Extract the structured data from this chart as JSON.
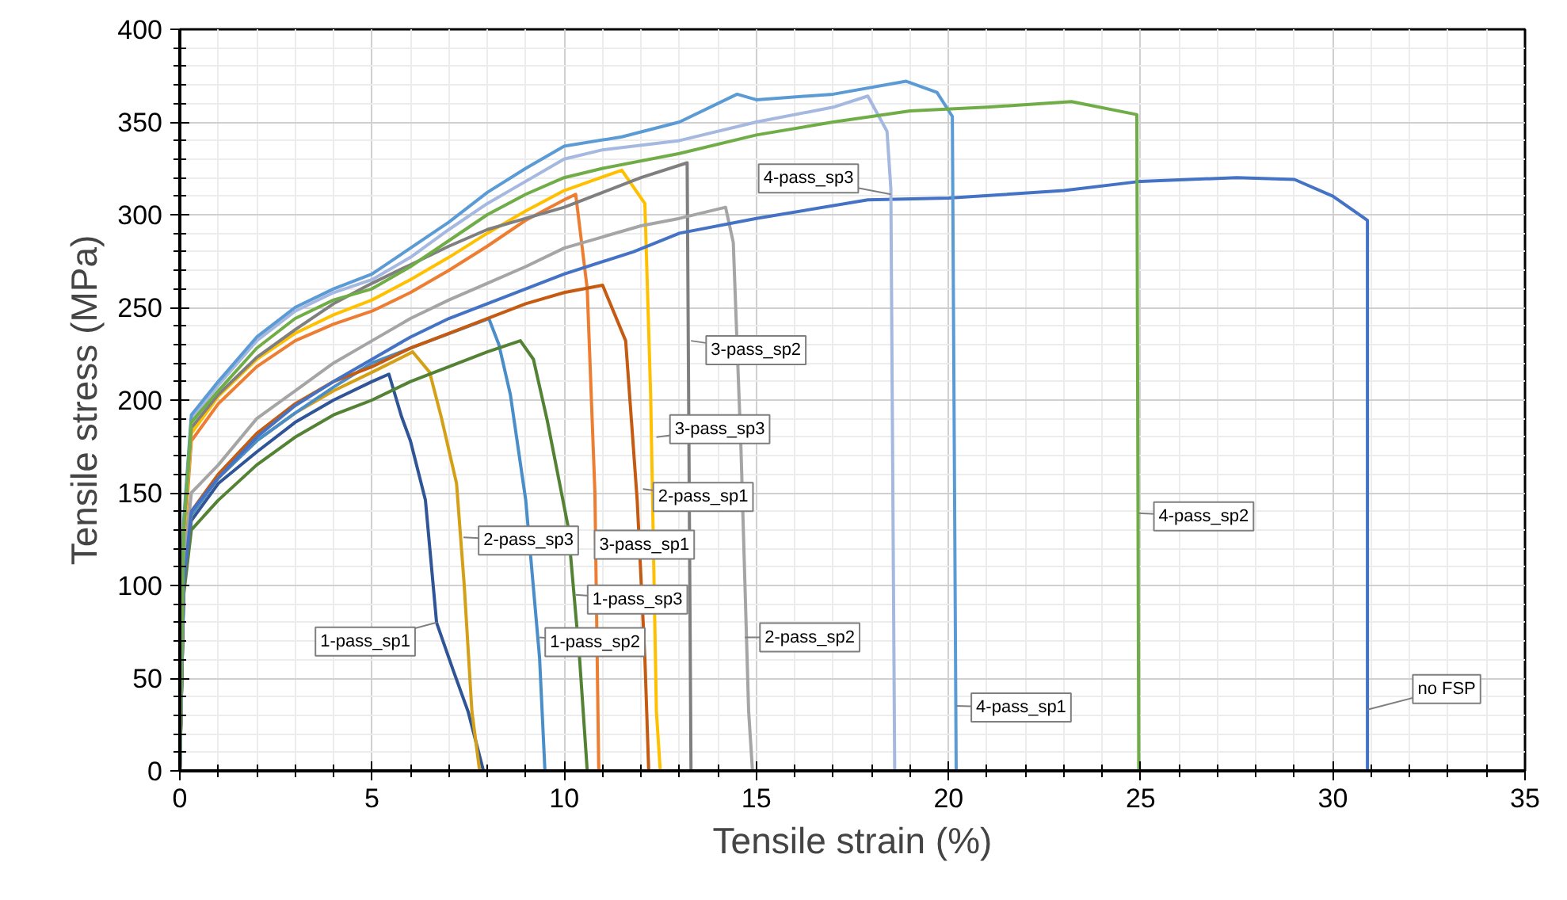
{
  "chart_data": {
    "type": "line",
    "xlabel": "Tensile strain (%)",
    "ylabel": "Tensile stress (MPa)",
    "xlim": [
      0,
      35
    ],
    "ylim": [
      0,
      400
    ],
    "xticks": [
      0,
      5,
      10,
      15,
      20,
      25,
      30,
      35
    ],
    "yticks": [
      0,
      50,
      100,
      150,
      200,
      250,
      300,
      350,
      400
    ],
    "grid": true,
    "marker": "none",
    "line_style": "solid",
    "series": [
      {
        "color": "#2f5597",
        "x": [
          0,
          0.1,
          0.3,
          1,
          2,
          3,
          4,
          5,
          5.44,
          5.77,
          6.0,
          6.39,
          6.68,
          7.1,
          7.5,
          7.9
        ],
        "values": [
          0,
          100,
          135,
          155,
          172,
          188,
          200,
          210,
          214,
          191,
          178,
          146,
          80,
          55,
          32,
          0
        ]
      },
      {
        "color": "#d4a017",
        "x": [
          0,
          0.1,
          0.3,
          1,
          2,
          3,
          4,
          5,
          6.06,
          6.5,
          6.8,
          7.2,
          7.4,
          7.6,
          7.8
        ],
        "values": [
          0,
          100,
          138,
          158,
          178,
          193,
          205,
          215,
          226,
          215,
          191,
          155,
          100,
          32,
          0
        ]
      },
      {
        "color": "#4a8ec9",
        "x": [
          0,
          0.1,
          0.3,
          1,
          2,
          3,
          4,
          5,
          6,
          8.04,
          8.3,
          8.6,
          9.0,
          9.36,
          9.5
        ],
        "values": [
          0,
          100,
          138,
          158,
          178,
          193,
          207,
          220,
          228,
          244,
          230,
          203,
          146,
          61,
          0
        ]
      },
      {
        "color": "#548235",
        "x": [
          0,
          0.1,
          0.3,
          1,
          2,
          3,
          4,
          5,
          6,
          7,
          8,
          8.86,
          9.2,
          9.56,
          10.1,
          10.4,
          10.6
        ],
        "values": [
          0,
          95,
          130,
          146,
          165,
          180,
          192,
          200,
          210,
          218,
          226,
          232,
          222,
          189,
          132,
          61,
          0
        ]
      },
      {
        "color": "#ed7d31",
        "x": [
          0,
          0.1,
          0.3,
          1,
          2,
          3,
          4,
          5,
          6,
          7,
          8,
          9,
          10,
          10.3,
          10.6,
          10.8,
          10.9
        ],
        "values": [
          0,
          120,
          178,
          198,
          218,
          232,
          241,
          248,
          258,
          270,
          283,
          297,
          308,
          311,
          260,
          150,
          0
        ]
      },
      {
        "color": "#c55a11",
        "x": [
          0,
          0.1,
          0.3,
          1,
          2,
          3,
          4,
          5,
          6,
          7,
          8,
          9,
          10,
          11.0,
          11.6,
          11.9,
          12.1,
          12.2
        ],
        "values": [
          0,
          100,
          140,
          160,
          182,
          198,
          210,
          218,
          228,
          236,
          244,
          252,
          258,
          262,
          232,
          146,
          61,
          0
        ]
      },
      {
        "color": "#ffc000",
        "x": [
          0,
          0.1,
          0.3,
          1,
          2,
          3,
          4,
          5,
          6,
          7,
          8,
          9,
          10,
          11.5,
          12.1,
          12.25,
          12.4,
          12.5
        ],
        "values": [
          0,
          125,
          182,
          202,
          222,
          236,
          246,
          254,
          265,
          277,
          290,
          302,
          313,
          324,
          306,
          203,
          32,
          0
        ]
      },
      {
        "color": "#7f7f7f",
        "x": [
          0,
          0.1,
          0.3,
          1,
          2,
          3,
          4,
          5,
          6,
          7,
          8,
          9,
          10,
          11,
          12,
          13.2,
          13.3
        ],
        "values": [
          0,
          130,
          185,
          203,
          223,
          238,
          252,
          263,
          273,
          283,
          292,
          298,
          304,
          312,
          320,
          328,
          0
        ]
      },
      {
        "color": "#a5a5a5",
        "x": [
          0,
          0.1,
          0.3,
          1,
          2,
          3,
          4,
          5,
          6,
          7,
          8,
          9,
          10,
          11,
          12,
          13,
          14.2,
          14.4,
          14.6,
          14.8,
          14.9
        ],
        "values": [
          0,
          110,
          150,
          165,
          190,
          205,
          220,
          232,
          244,
          254,
          263,
          272,
          282,
          288,
          294,
          298,
          304,
          285,
          174,
          32,
          0
        ]
      },
      {
        "color": "#4472c4",
        "x": [
          0,
          0.1,
          0.3,
          1,
          2,
          3,
          4,
          5,
          6,
          7,
          8,
          9,
          10,
          11.8,
          13,
          15,
          17.9,
          20,
          23,
          25,
          27.5,
          29,
          30,
          30.9,
          30.9
        ],
        "values": [
          0,
          100,
          140,
          158,
          180,
          197,
          210,
          222,
          234,
          244,
          252,
          260,
          268,
          280,
          290,
          298,
          308,
          309,
          313,
          318,
          320,
          319,
          310,
          297,
          0
        ]
      },
      {
        "color": "#a5b8e0",
        "x": [
          0,
          0.1,
          0.3,
          1,
          2,
          3,
          4,
          5,
          6,
          7,
          8,
          9,
          10,
          11,
          13,
          15,
          17,
          17.9,
          18.4,
          18.5,
          18.6
        ],
        "values": [
          0,
          130,
          190,
          208,
          232,
          248,
          258,
          265,
          277,
          292,
          306,
          318,
          330,
          335,
          340,
          350,
          358,
          364,
          345,
          314,
          0
        ]
      },
      {
        "color": "#5b9bd5",
        "x": [
          0,
          0.1,
          0.3,
          1,
          2,
          3,
          4,
          5,
          6,
          7,
          8,
          9,
          10,
          11.5,
          13,
          14.5,
          15,
          17,
          18.9,
          19.7,
          20.1,
          20.2
        ],
        "values": [
          0,
          135,
          192,
          210,
          234,
          250,
          260,
          268,
          282,
          296,
          312,
          325,
          337,
          342,
          350,
          365,
          362,
          365,
          372,
          366,
          353,
          0
        ]
      },
      {
        "color": "#70ad47",
        "x": [
          0,
          0.1,
          0.3,
          1,
          2,
          3,
          4,
          5,
          6,
          7,
          8,
          9,
          10,
          11,
          13,
          15,
          17,
          19,
          21,
          23.2,
          24.9,
          24.95
        ],
        "values": [
          0,
          130,
          188,
          205,
          228,
          244,
          254,
          260,
          272,
          286,
          300,
          311,
          320,
          325,
          333,
          343,
          350,
          356,
          358,
          361,
          354,
          0
        ]
      }
    ],
    "annotations": [
      {
        "text": "1-pass_sp1",
        "x": 6.68,
        "y": 80
      },
      {
        "text": "2-pass_sp3",
        "x": 7.38,
        "y": 126
      },
      {
        "text": "1-pass_sp2",
        "x": 9.36,
        "y": 72
      },
      {
        "text": "1-pass_sp3",
        "x": 10.3,
        "y": 95
      },
      {
        "text": "3-pass_sp1",
        "x": 10.85,
        "y": 122
      },
      {
        "text": "2-pass_sp1",
        "x": 12.05,
        "y": 152
      },
      {
        "text": "3-pass_sp3",
        "x": 12.4,
        "y": 180
      },
      {
        "text": "3-pass_sp2",
        "x": 13.3,
        "y": 232
      },
      {
        "text": "2-pass_sp2",
        "x": 14.7,
        "y": 72
      },
      {
        "text": "4-pass_sp3",
        "x": 18.5,
        "y": 311
      },
      {
        "text": "4-pass_sp1",
        "x": 20.2,
        "y": 35
      },
      {
        "text": "4-pass_sp2",
        "x": 24.95,
        "y": 139
      },
      {
        "text": "no FSP",
        "x": 30.9,
        "y": 33
      }
    ]
  }
}
